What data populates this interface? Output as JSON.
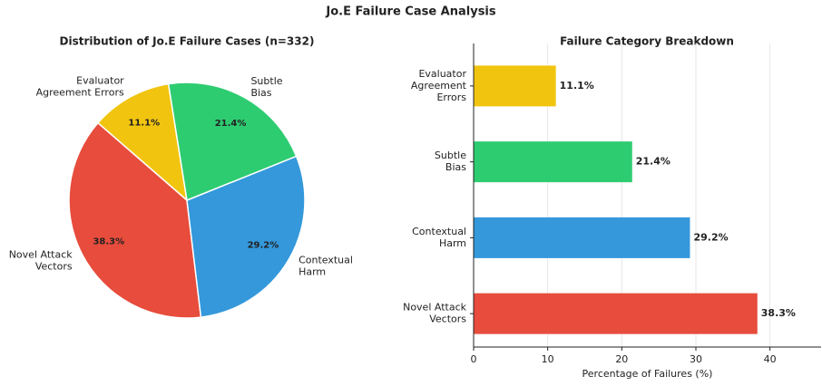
{
  "title": "Jo.E Failure Case Analysis",
  "chart_data": [
    {
      "type": "pie",
      "title": "Distribution of Jo.E Failure Cases (n=332)",
      "categories": [
        "Evaluator\nAgreement Errors",
        "Novel Attack\nVectors",
        "Contextual\nHarm",
        "Subtle\nBias"
      ],
      "values": [
        11.1,
        38.3,
        29.2,
        21.4
      ],
      "value_labels": [
        "11.1%",
        "38.3%",
        "29.2%",
        "21.4%"
      ],
      "colors": [
        "#f1c40f",
        "#e74c3c",
        "#3498db",
        "#2ecc71"
      ]
    },
    {
      "type": "barh",
      "title": "Failure Category Breakdown",
      "categories": [
        "Novel Attack\nVectors",
        "Contextual\nHarm",
        "Subtle\nBias",
        "Evaluator\nAgreement\nErrors"
      ],
      "values": [
        38.3,
        29.2,
        21.4,
        11.1
      ],
      "value_labels": [
        "38.3%",
        "29.2%",
        "21.4%",
        "11.1%"
      ],
      "colors": [
        "#e74c3c",
        "#3498db",
        "#2ecc71",
        "#f1c40f"
      ],
      "xlabel": "Percentage of Failures (%)",
      "xlim": [
        0,
        46.9
      ],
      "xticks": [
        0,
        10,
        20,
        30,
        40
      ],
      "grid": true
    }
  ]
}
